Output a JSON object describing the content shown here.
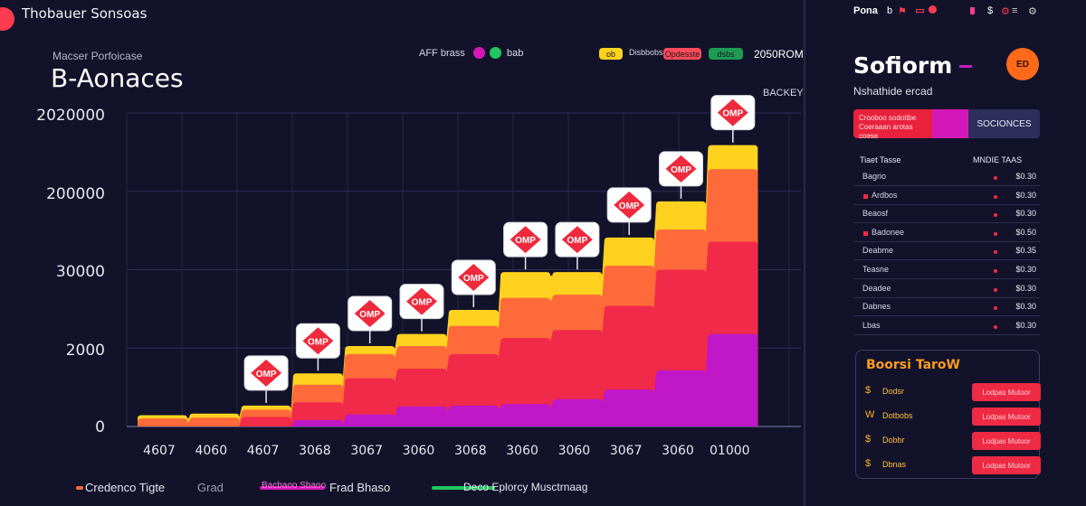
{
  "header": {
    "app_title": "Thobauer Sonsoas"
  },
  "panel": {
    "subtitle": "Macser Porfoicase",
    "title": "B-Aonaces"
  },
  "top_legend": {
    "label_a": "AFF brass",
    "label_b": "bab",
    "chip_yellow": "ob",
    "chip_text": "Disbbobs",
    "chip_red": "Opdesste",
    "chip_green": "dsbs",
    "value": "2050ROM"
  },
  "y_axis": {
    "ticks": [
      "2020000",
      "200000",
      "30000",
      "2000",
      "0"
    ]
  },
  "x_axis": {
    "ticks": [
      "4607",
      "4060",
      "4607",
      "3068",
      "3067",
      "3060",
      "3068",
      "3060",
      "3060",
      "3067",
      "3060",
      "01000"
    ]
  },
  "badge_text": "OMP",
  "corner_label": "BACKEY",
  "bottom_legend": [
    {
      "label": "Credenco Tigte",
      "color": "#ff6a3a"
    },
    {
      "label": "Grad",
      "color": "#9a9ab8"
    },
    {
      "label": "Bacbaoo Sbaoo",
      "color": "#d418b8"
    },
    {
      "label": "Frad Bhaso",
      "color": "#ffffff"
    },
    {
      "label": "Deco Eplorcy Musctrnaag",
      "color": "#22c55e"
    }
  ],
  "chart_data": {
    "type": "area",
    "title": "B-Aonaces",
    "subtitle": "Macser Porfoicase",
    "categories": [
      "4607",
      "4060",
      "4607",
      "3068",
      "3067",
      "3060",
      "3068",
      "3060",
      "3060",
      "3067",
      "3060",
      "01000"
    ],
    "series": [
      {
        "name": "Frad Bhaso",
        "color": "#ffd21f",
        "values": [
          140,
          160,
          260,
          660,
          1000,
          1150,
          1450,
          1920,
          1920,
          2350,
          2800,
          3500
        ]
      },
      {
        "name": "Credenco Tigte",
        "color": "#ff6a3a",
        "values": [
          100,
          110,
          210,
          520,
          900,
          1000,
          1250,
          1600,
          1640,
          2000,
          2450,
          3200
        ]
      },
      {
        "name": "Bacbaoo Sbaoo",
        "color": "#f02a48",
        "values": [
          0,
          0,
          120,
          300,
          600,
          720,
          900,
          1100,
          1200,
          1500,
          1950,
          2300
        ]
      },
      {
        "name": "Deco Eplorcy Musctrnaag",
        "color": "#c018c8",
        "values": [
          0,
          0,
          0,
          80,
          150,
          250,
          260,
          280,
          340,
          460,
          700,
          1150
        ]
      }
    ],
    "badges_at": [
      2,
      3,
      4,
      5,
      6,
      7,
      8,
      9,
      10,
      11
    ],
    "grid": true,
    "legend_position": "bottom"
  },
  "side": {
    "head_text": "Pona",
    "title": "Sofiorm",
    "avatar": "ED",
    "subtitle": "Nshathide ercad",
    "stat_left": "Crooboo sodotibe Coeraaan arotas coese",
    "stat_right": "SOCIONCES",
    "table_head_left": "Tiaet Tasse",
    "table_head_right": "MNDIE TAAS",
    "rows": [
      {
        "name": "Bagrio",
        "value": "$0.30",
        "flag": false
      },
      {
        "name": "Ardbos",
        "value": "$0.30",
        "flag": true
      },
      {
        "name": "Beaosf",
        "value": "$0.30",
        "flag": false
      },
      {
        "name": "Badonee",
        "value": "$0.50",
        "flag": true
      },
      {
        "name": "Deabme",
        "value": "$0.35",
        "flag": false
      },
      {
        "name": "Teasne",
        "value": "$0.30",
        "flag": false
      },
      {
        "name": "Deadee",
        "value": "$0.30",
        "flag": false
      },
      {
        "name": "Dabnes",
        "value": "$0.30",
        "flag": false
      },
      {
        "name": "Lbas",
        "value": "$0.30",
        "flag": false
      }
    ],
    "boost": {
      "title": "Boorsi TaroW",
      "items": [
        {
          "icon": "$",
          "label": "Dodsr",
          "button": "Lodpas Mutoor"
        },
        {
          "icon": "W",
          "label": "Dotbobs",
          "button": "Lodpas Mutoor"
        },
        {
          "icon": "$",
          "label": "Dobbr",
          "button": "Lodpas Mutoor"
        },
        {
          "icon": "$",
          "label": "Dbnas",
          "button": "Lodpas Mutoor"
        }
      ]
    }
  }
}
